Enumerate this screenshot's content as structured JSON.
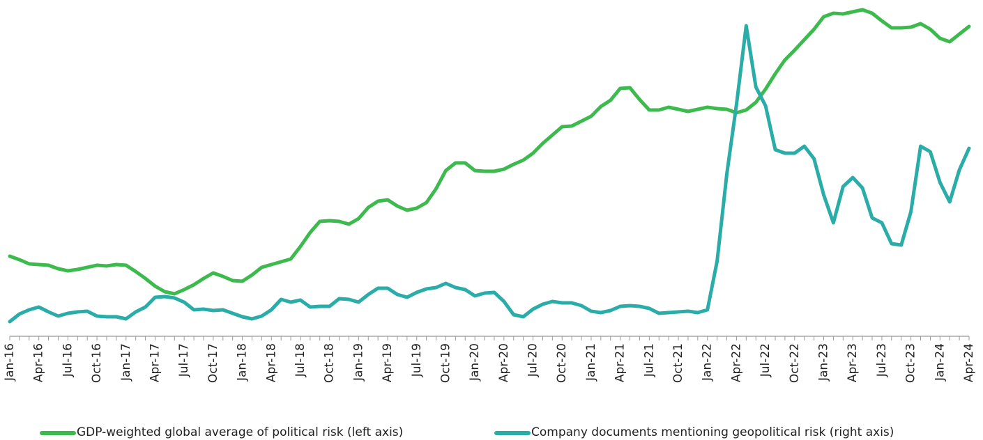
{
  "chart_data": {
    "type": "line",
    "categories": [
      "Jan-16",
      null,
      null,
      "Apr-16",
      null,
      null,
      "Jul-16",
      null,
      null,
      "Oct-16",
      null,
      null,
      "Jan-17",
      null,
      null,
      "Apr-17",
      null,
      null,
      "Jul-17",
      null,
      null,
      "Oct-17",
      null,
      null,
      "Jan-18",
      null,
      null,
      "Apr-18",
      null,
      null,
      "Jul-18",
      null,
      null,
      "Oct-18",
      null,
      null,
      "Jan-19",
      null,
      null,
      "Apr-19",
      null,
      null,
      "Jul-19",
      null,
      null,
      "Oct-19",
      null,
      null,
      "Jan-20",
      null,
      null,
      "Apr-20",
      null,
      null,
      "Jul-20",
      null,
      null,
      "Oct-20",
      null,
      null,
      "Jan-21",
      null,
      null,
      "Apr-21",
      null,
      null,
      "Jul-21",
      null,
      null,
      "Oct-21",
      null,
      null,
      "Jan-22",
      null,
      null,
      "Apr-22",
      null,
      null,
      "Jul-22",
      null,
      null,
      "Oct-22",
      null,
      null,
      "Jan-23",
      null,
      null,
      "Apr-23",
      null,
      null,
      "Jul-23",
      null,
      null,
      "Oct-23",
      null,
      null,
      "Jan-24",
      null,
      null,
      "Apr-24"
    ],
    "ylim": [
      0,
      483
    ],
    "y2lim": [
      0,
      483
    ],
    "series": [
      {
        "name": "GDP-weighted global average of political risk (left axis)",
        "color": "#3dba4e",
        "axis": "y",
        "values": [
          115,
          110,
          104,
          103,
          102,
          97,
          94,
          96,
          99,
          102,
          101,
          103,
          102,
          93,
          83,
          72,
          64,
          61,
          67,
          74,
          83,
          91,
          86,
          80,
          79,
          88,
          99,
          103,
          107,
          111,
          129,
          149,
          165,
          166,
          165,
          161,
          169,
          185,
          194,
          196,
          187,
          181,
          184,
          192,
          212,
          238,
          249,
          249,
          238,
          237,
          237,
          240,
          247,
          253,
          263,
          277,
          289,
          301,
          302,
          309,
          316,
          330,
          339,
          356,
          357,
          340,
          325,
          325,
          329,
          326,
          323,
          326,
          329,
          327,
          326,
          321,
          325,
          336,
          355,
          377,
          397,
          411,
          426,
          441,
          459,
          464,
          463,
          466,
          469,
          464,
          453,
          443,
          443,
          444,
          449,
          441,
          428,
          423,
          434,
          445
        ]
      },
      {
        "name": "Company documents mentioning geopolitical risk (right axis)",
        "color": "#2aaca8",
        "axis": "y2",
        "values": [
          21,
          32,
          38,
          42,
          35,
          29,
          33,
          35,
          36,
          29,
          28,
          28,
          25,
          35,
          42,
          56,
          57,
          55,
          49,
          38,
          39,
          37,
          38,
          33,
          28,
          25,
          29,
          38,
          53,
          49,
          52,
          42,
          43,
          43,
          54,
          53,
          49,
          60,
          69,
          69,
          60,
          56,
          63,
          68,
          70,
          76,
          70,
          67,
          58,
          62,
          63,
          50,
          31,
          28,
          39,
          46,
          50,
          48,
          48,
          44,
          36,
          34,
          37,
          43,
          44,
          43,
          40,
          33,
          34,
          35,
          36,
          34,
          38,
          108,
          233,
          333,
          446,
          358,
          331,
          268,
          263,
          263,
          273,
          255,
          203,
          163,
          215,
          228,
          213,
          170,
          163,
          133,
          131,
          179,
          273,
          265,
          221,
          193,
          239,
          270
        ]
      }
    ]
  }
}
